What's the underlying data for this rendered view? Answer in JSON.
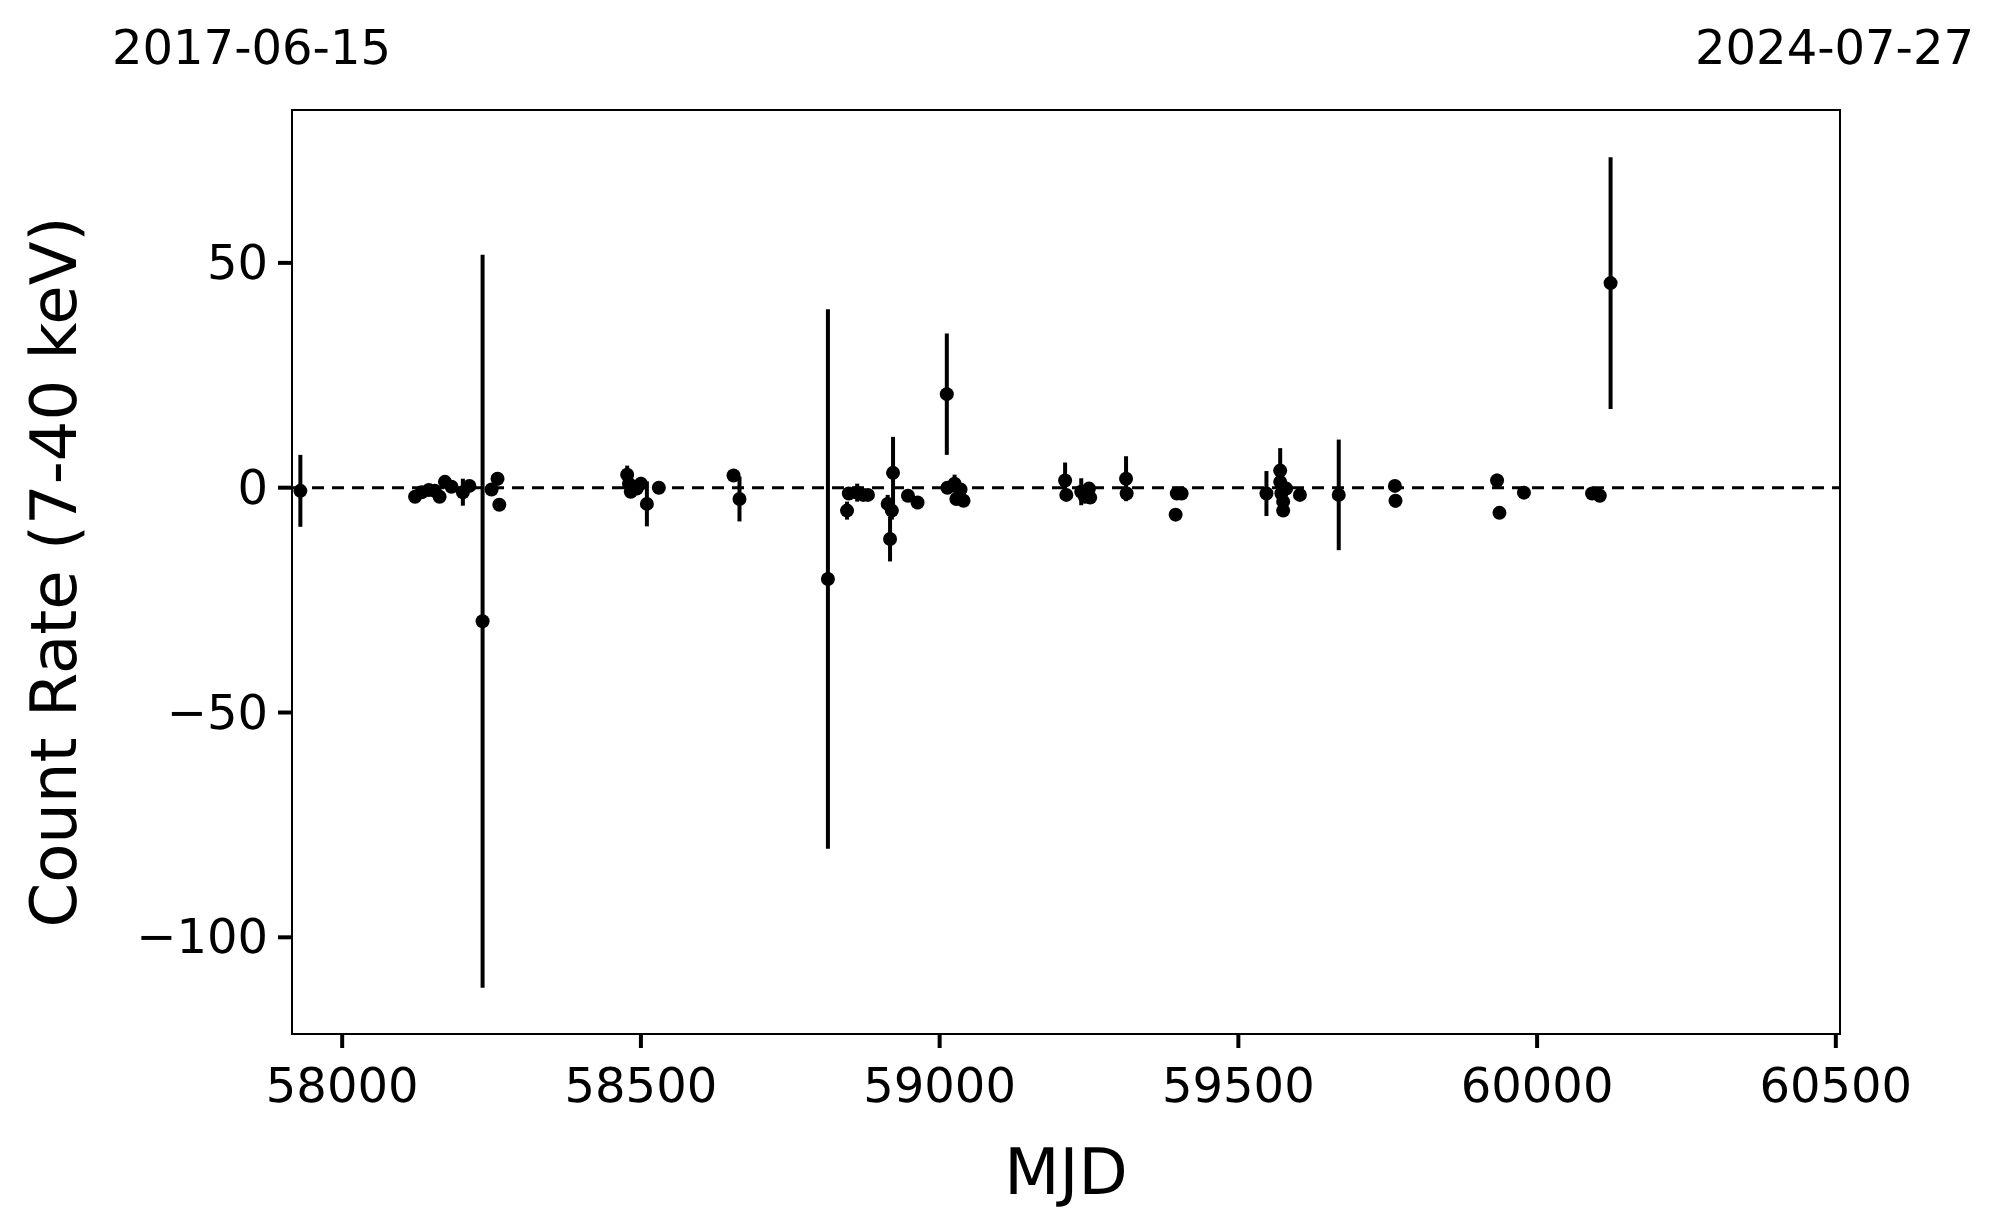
{
  "chart_data": {
    "type": "scatter",
    "xlabel": "MJD",
    "ylabel": "Count Rate (7-40 keV)",
    "annotations": [
      "2017-06-15",
      "2024-07-27"
    ],
    "x": [
      57930,
      58122,
      58133,
      58145,
      58155,
      58163,
      58172,
      58183,
      58202,
      58213,
      58235,
      58250,
      58260,
      58263,
      58477,
      58480,
      58483,
      58493,
      58500,
      58510,
      58530,
      58655,
      58665,
      58813,
      58845,
      58848,
      58862,
      58872,
      58880,
      58913,
      58917,
      58920,
      58922,
      58947,
      58963,
      59012,
      59013,
      59025,
      59028,
      59035,
      59040,
      59210,
      59212,
      59237,
      59243,
      59250,
      59252,
      59312,
      59313,
      59395,
      59397,
      59405,
      59547,
      59570,
      59570,
      59572,
      59575,
      59575,
      59580,
      59603,
      59668,
      59762,
      59763,
      59933,
      59937,
      59978,
      60092,
      60105,
      60123
    ],
    "values": [
      -0.7,
      -2,
      -1,
      -0.5,
      -0.7,
      -2,
      1.3,
      0.2,
      -1,
      0.4,
      -29.7,
      -0.4,
      2,
      -3.8,
      2.9,
      0.9,
      -0.9,
      -0.2,
      0.9,
      -3.6,
      0,
      2.7,
      -2.5,
      -20.3,
      -5.1,
      -1.3,
      -1.1,
      -1.6,
      -1.6,
      -3.6,
      -11.4,
      -5.1,
      3.3,
      -1.8,
      -3.3,
      20.8,
      0,
      0.9,
      -2.5,
      -0.4,
      -2.9,
      1.6,
      -1.6,
      -0.9,
      -2,
      -0.2,
      -2.2,
      2,
      -1.3,
      -6,
      -1.3,
      -1.3,
      -1.3,
      3.8,
      1.3,
      -1.3,
      -3.1,
      -5.1,
      -0.2,
      -1.6,
      -1.6,
      0.4,
      -2.9,
      1.6,
      -5.6,
      -1.1,
      -1.3,
      -1.8,
      45.5
    ],
    "errors": [
      8,
      1,
      1,
      1,
      1,
      1,
      1,
      1,
      3,
      1,
      81.5,
      1,
      1.5,
      1,
      2,
      1,
      1,
      1,
      1.5,
      5,
      1,
      1,
      5,
      60,
      2,
      1,
      2,
      1,
      1,
      2,
      5,
      2,
      8,
      1,
      1,
      13.5,
      1,
      2,
      1,
      1,
      1,
      4,
      1,
      3,
      1,
      1,
      1,
      5,
      1,
      1,
      1,
      1,
      5,
      5,
      1,
      1,
      1,
      1,
      1,
      1,
      12.3,
      1,
      1.5,
      1.5,
      1,
      1,
      1,
      1,
      28
    ],
    "color": "#000000",
    "marker": "circle",
    "xlim": [
      57916,
      60507
    ],
    "xticks": [
      58000,
      58500,
      59000,
      59500,
      60000,
      60500
    ],
    "ylim": [
      -121.5,
      84
    ],
    "yticks": [
      -100,
      -50,
      0,
      50
    ],
    "ref_lines": [
      {
        "axis": "y",
        "value": 0,
        "color": "#000000",
        "line_style": "dashed"
      }
    ],
    "grid": false
  }
}
